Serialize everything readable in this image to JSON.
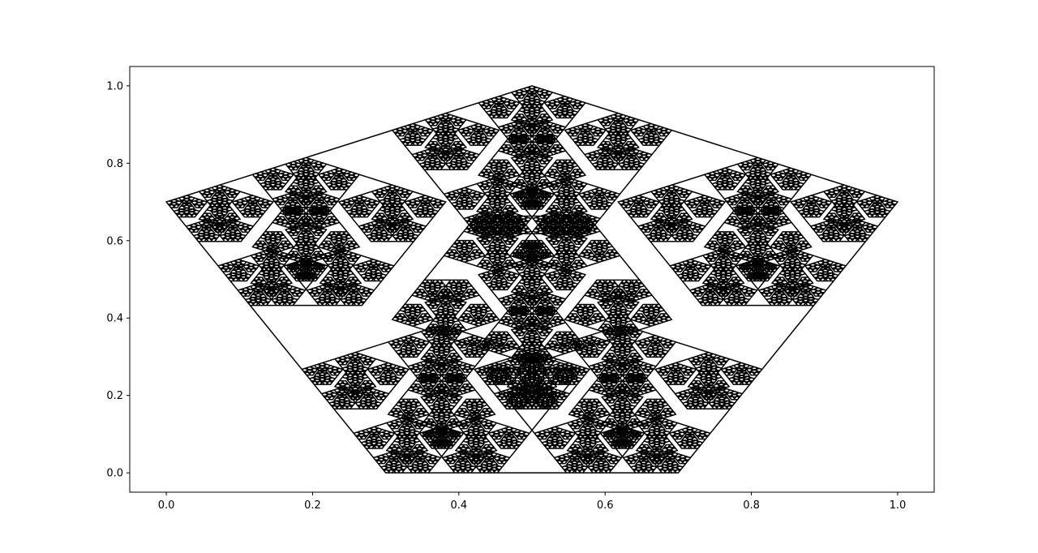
{
  "chart_data": {
    "type": "line",
    "title": "",
    "xlabel": "",
    "ylabel": "",
    "xlim": [
      -0.05,
      1.05
    ],
    "ylim": [
      -0.05,
      1.05
    ],
    "grid": false,
    "legend": "none",
    "x_ticks": [
      "0.0",
      "0.2",
      "0.4",
      "0.6",
      "0.8",
      "1.0"
    ],
    "y_ticks": [
      "0.0",
      "0.2",
      "0.4",
      "0.6",
      "0.8",
      "1.0"
    ],
    "line_color": "#000000",
    "fractal": {
      "kind": "recursive-pentagon",
      "outer_vertices": [
        [
          0.0,
          0.7
        ],
        [
          0.3,
          0.0
        ],
        [
          0.7,
          0.0
        ],
        [
          1.0,
          0.7
        ],
        [
          0.5,
          1.0
        ]
      ],
      "levels": 5
    }
  }
}
